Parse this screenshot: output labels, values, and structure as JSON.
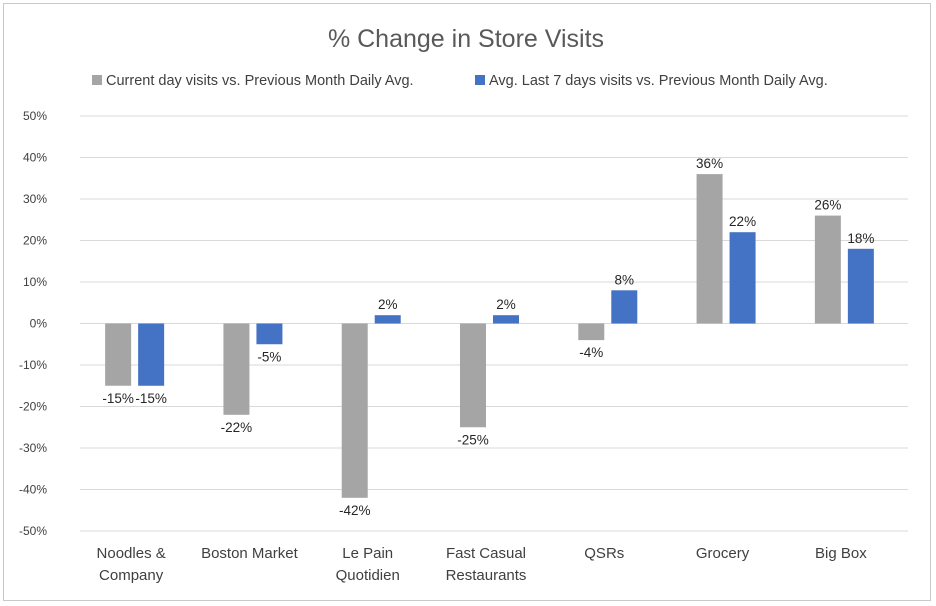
{
  "chart_data": {
    "type": "bar",
    "title": "% Change in Store Visits",
    "categories": [
      [
        "Noodles &",
        "Company"
      ],
      [
        "Boston Market"
      ],
      [
        "Le Pain",
        "Quotidien"
      ],
      [
        "Fast Casual",
        "Restaurants"
      ],
      [
        "QSRs"
      ],
      [
        "Grocery"
      ],
      [
        "Big Box"
      ]
    ],
    "series": [
      {
        "name": "Current day visits vs. Previous Month Daily Avg.",
        "color": "#a5a5a5",
        "values": [
          -15,
          -22,
          -42,
          -25,
          -4,
          36,
          26
        ],
        "labels": [
          "-15%",
          "-22%",
          "-42%",
          "-25%",
          "-4%",
          "36%",
          "26%"
        ]
      },
      {
        "name": "Avg. Last 7 days visits vs. Previous Month Daily Avg.",
        "color": "#4472c4",
        "values": [
          -15,
          -5,
          2,
          2,
          8,
          22,
          18
        ],
        "labels": [
          "-15%",
          "-5%",
          "2%",
          "2%",
          "8%",
          "22%",
          "18%"
        ]
      }
    ],
    "ylim": [
      -50,
      50
    ],
    "yticks": [
      "50%",
      "40%",
      "30%",
      "20%",
      "10%",
      "0%",
      "-10%",
      "-20%",
      "-30%",
      "-40%",
      "-50%"
    ],
    "ytick_values": [
      50,
      40,
      30,
      20,
      10,
      0,
      -10,
      -20,
      -30,
      -40,
      -50
    ],
    "grid": true,
    "legend_position": "top",
    "xlabel": "",
    "ylabel": ""
  }
}
